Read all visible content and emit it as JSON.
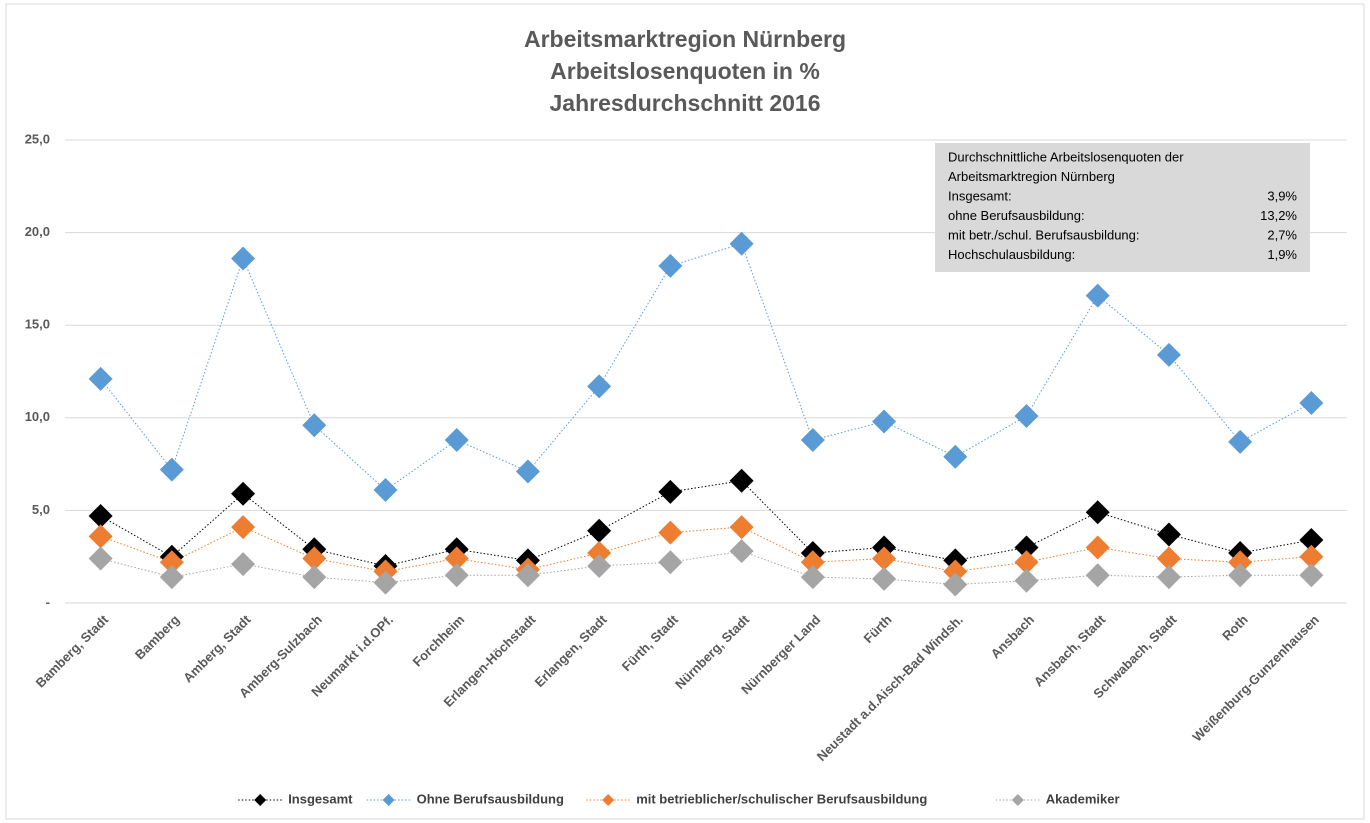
{
  "chart_data": {
    "type": "line",
    "title": [
      "Arbeitsmarktregion Nürnberg",
      "Arbeitslosenquoten in %",
      "Jahresdurchschnitt 2016"
    ],
    "categories": [
      "Bamberg, Stadt",
      "Bamberg",
      "Amberg, Stadt",
      "Amberg-Sulzbach",
      "Neumarkt i.d.OPf.",
      "Forchheim",
      "Erlangen-Höchstadt",
      "Erlangen, Stadt",
      "Fürth, Stadt",
      "Nürnberg, Stadt",
      "Nürnberger Land",
      "Fürth",
      "Neustadt a.d.Aisch-Bad Windsh.",
      "Ansbach",
      "Ansbach, Stadt",
      "Schwabach, Stadt",
      "Roth",
      "Weißenburg-Gunzenhausen"
    ],
    "series": [
      {
        "name": "Insgesamt",
        "color": "#000000",
        "values": [
          4.7,
          2.5,
          5.9,
          2.9,
          2.0,
          2.9,
          2.3,
          3.9,
          6.0,
          6.6,
          2.7,
          3.0,
          2.3,
          3.0,
          4.9,
          3.7,
          2.7,
          3.4
        ]
      },
      {
        "name": "Ohne Berufsausbildung",
        "color": "#5b9bd5",
        "values": [
          12.1,
          7.2,
          18.6,
          9.6,
          6.1,
          8.8,
          7.1,
          11.7,
          18.2,
          19.4,
          8.8,
          9.8,
          7.9,
          10.1,
          16.6,
          13.4,
          8.7,
          10.8
        ]
      },
      {
        "name": "mit betrieblicher/schulischer Berufsausbildung",
        "color": "#ed7d31",
        "values": [
          3.6,
          2.2,
          4.1,
          2.4,
          1.7,
          2.4,
          1.8,
          2.7,
          3.8,
          4.1,
          2.2,
          2.4,
          1.7,
          2.2,
          3.0,
          2.4,
          2.2,
          2.5
        ]
      },
      {
        "name": "Akademiker",
        "color": "#a5a5a5",
        "values": [
          2.4,
          1.4,
          2.1,
          1.4,
          1.1,
          1.5,
          1.5,
          2.0,
          2.2,
          2.8,
          1.4,
          1.3,
          1.0,
          1.2,
          1.5,
          1.4,
          1.5,
          1.5
        ]
      }
    ],
    "ylim": [
      0,
      25
    ],
    "yticks": [
      {
        "value": 0,
        "label": "-"
      },
      {
        "value": 5,
        "label": "5,0"
      },
      {
        "value": 10,
        "label": "10,0"
      },
      {
        "value": 15,
        "label": "15,0"
      },
      {
        "value": 20,
        "label": "20,0"
      },
      {
        "value": 25,
        "label": "25,0"
      }
    ],
    "grid": true,
    "legend": "bottom",
    "annotation": {
      "heading": [
        "Durchschnittliche Arbeitslosenquoten der",
        "Arbeitsmarktregion Nürnberg"
      ],
      "rows": [
        [
          "Insgesamt:",
          "3,9%"
        ],
        [
          "ohne Berufsausbildung:",
          "13,2%"
        ],
        [
          "mit betr./schul. Berufsausbildung:",
          "2,7%"
        ],
        [
          "Hochschulausbildung:",
          "1,9%"
        ]
      ]
    }
  }
}
